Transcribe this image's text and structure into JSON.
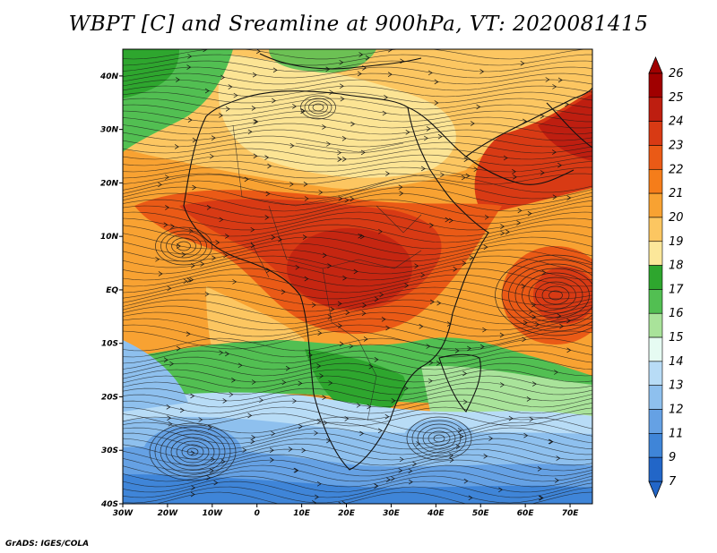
{
  "title": "WBPT [C] and Sreamline at 900hPa, VT: 2020081415",
  "credit": "GrADS: IGES/COLA",
  "map": {
    "lon_range": [
      -30,
      75
    ],
    "lat_range": [
      -40,
      45
    ],
    "lon_ticks": [
      {
        "value": -30,
        "label": "30W"
      },
      {
        "value": -20,
        "label": "20W"
      },
      {
        "value": -10,
        "label": "10W"
      },
      {
        "value": 0,
        "label": "0"
      },
      {
        "value": 10,
        "label": "10E"
      },
      {
        "value": 20,
        "label": "20E"
      },
      {
        "value": 30,
        "label": "30E"
      },
      {
        "value": 40,
        "label": "40E"
      },
      {
        "value": 50,
        "label": "50E"
      },
      {
        "value": 60,
        "label": "60E"
      },
      {
        "value": 70,
        "label": "70E"
      }
    ],
    "lat_ticks": [
      {
        "value": 40,
        "label": "40N"
      },
      {
        "value": 30,
        "label": "30N"
      },
      {
        "value": 20,
        "label": "20N"
      },
      {
        "value": 10,
        "label": "10N"
      },
      {
        "value": 0,
        "label": "EQ"
      },
      {
        "value": -10,
        "label": "10S"
      },
      {
        "value": -20,
        "label": "20S"
      },
      {
        "value": -30,
        "label": "30S"
      },
      {
        "value": -40,
        "label": "40S"
      }
    ]
  },
  "colorbar": {
    "levels": [
      "26",
      "25",
      "24",
      "23",
      "22",
      "21",
      "20",
      "19",
      "18",
      "17",
      "16",
      "15",
      "14",
      "13",
      "12",
      "11",
      "9",
      "7"
    ],
    "colors": [
      "#a00000",
      "#be1e10",
      "#d83a14",
      "#ea5a16",
      "#f57d1a",
      "#f8a232",
      "#fcc661",
      "#fce79a",
      "#2ea62e",
      "#52bf52",
      "#a9e39a",
      "#e6fbf2",
      "#b8dcf6",
      "#8ec0ee",
      "#65a1e4",
      "#3f85d8",
      "#2266c8"
    ],
    "top_cap_color": "#a00000",
    "bottom_cap_color": "#2266c8"
  }
}
